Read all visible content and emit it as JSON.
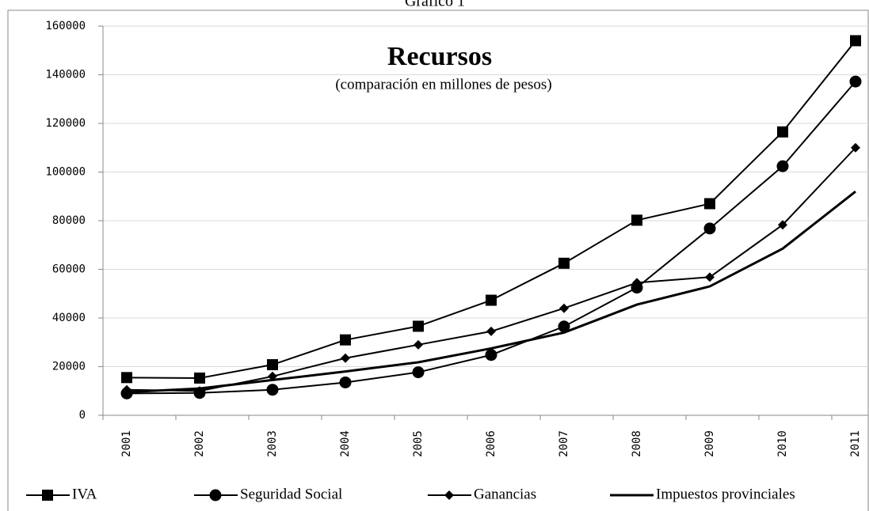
{
  "chart_data": {
    "type": "line",
    "title": "Gráfico 1",
    "subtitle": "Recursos",
    "annotation": "(comparación en millones de pesos)",
    "categories": [
      "2001",
      "2002",
      "2003",
      "2004",
      "2005",
      "2006",
      "2007",
      "2008",
      "2009",
      "2010",
      "2011"
    ],
    "series": [
      {
        "name": "IVA",
        "color": "#000000",
        "marker": "square",
        "values": [
          15500,
          15300,
          20800,
          31000,
          36600,
          47300,
          62500,
          80200,
          87000,
          116500,
          154000
        ]
      },
      {
        "name": "Seguridad Social",
        "color": "#000000",
        "marker": "circle",
        "values": [
          9000,
          9200,
          10500,
          13500,
          17700,
          24800,
          36500,
          52500,
          76800,
          102400,
          137200
        ]
      },
      {
        "name": "Ganancias",
        "color": "#000000",
        "marker": "diamond",
        "values": [
          10500,
          10000,
          16000,
          23500,
          29000,
          34500,
          44000,
          54500,
          56800,
          78300,
          110000
        ]
      },
      {
        "name": "Impuestos provinciales",
        "color": "#000000",
        "marker": "none",
        "values": [
          9500,
          11000,
          14500,
          18000,
          21800,
          27500,
          34000,
          45500,
          53000,
          68500,
          92000
        ]
      }
    ],
    "ylim": [
      0,
      160000
    ],
    "yticks": [
      0,
      20000,
      40000,
      60000,
      80000,
      100000,
      120000,
      140000,
      160000
    ],
    "grid": true,
    "legend": "bottom"
  }
}
